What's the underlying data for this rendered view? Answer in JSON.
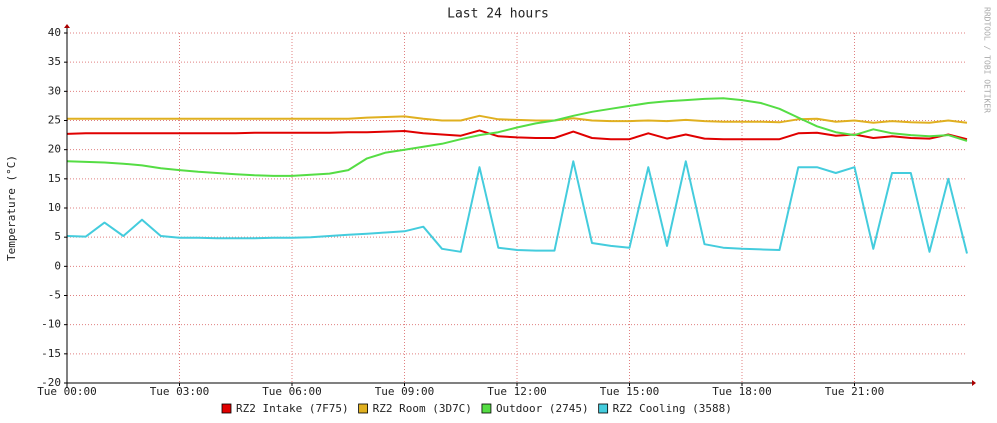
{
  "chart_data": {
    "type": "line",
    "title": "Last 24 hours",
    "ylabel": "Temperature (°C)",
    "watermark": "RRDTOOL / TOBI OETIKER",
    "x": [
      0,
      0.5,
      1,
      1.5,
      2,
      2.5,
      3,
      3.5,
      4,
      4.5,
      5,
      5.5,
      6,
      6.5,
      7,
      7.5,
      8,
      8.5,
      9,
      9.5,
      10,
      10.5,
      11,
      11.5,
      12,
      12.5,
      13,
      13.5,
      14,
      14.5,
      15,
      15.5,
      16,
      16.5,
      17,
      17.5,
      18,
      18.5,
      19,
      19.5,
      20,
      20.5,
      21,
      21.5,
      22,
      22.5,
      23,
      23.5,
      24
    ],
    "xlim": [
      0,
      24
    ],
    "xticks": [
      {
        "value": 0,
        "label": "Tue 00:00"
      },
      {
        "value": 3,
        "label": "Tue 03:00"
      },
      {
        "value": 6,
        "label": "Tue 06:00"
      },
      {
        "value": 9,
        "label": "Tue 09:00"
      },
      {
        "value": 12,
        "label": "Tue 12:00"
      },
      {
        "value": 15,
        "label": "Tue 15:00"
      },
      {
        "value": 18,
        "label": "Tue 18:00"
      },
      {
        "value": 21,
        "label": "Tue 21:00"
      }
    ],
    "ylim": [
      -20,
      40
    ],
    "yticks": [
      -20,
      -15,
      -10,
      -5,
      0,
      5,
      10,
      15,
      20,
      25,
      30,
      35,
      40
    ],
    "grid": true,
    "series": [
      {
        "name": "RZ2 Intake (7F75)",
        "color": "#e00000",
        "values": [
          22.7,
          22.8,
          22.8,
          22.8,
          22.8,
          22.8,
          22.8,
          22.8,
          22.8,
          22.8,
          22.9,
          22.9,
          22.9,
          22.9,
          22.9,
          23,
          23,
          23.1,
          23.2,
          22.8,
          22.6,
          22.4,
          23.3,
          22.3,
          22.1,
          22,
          22,
          23.1,
          22,
          21.8,
          21.8,
          22.8,
          21.9,
          22.6,
          21.9,
          21.8,
          21.8,
          21.8,
          21.8,
          22.8,
          22.9,
          22.4,
          22.6,
          22,
          22.3,
          22,
          21.9,
          22.6,
          21.8
        ]
      },
      {
        "name": "RZ2 Room (3D7C)",
        "color": "#e0b020",
        "values": [
          25.3,
          25.3,
          25.3,
          25.3,
          25.3,
          25.3,
          25.3,
          25.3,
          25.3,
          25.3,
          25.3,
          25.3,
          25.3,
          25.3,
          25.3,
          25.3,
          25.5,
          25.6,
          25.7,
          25.3,
          25,
          25,
          25.8,
          25.2,
          25.1,
          25,
          25,
          25.4,
          25,
          24.9,
          24.9,
          25,
          24.9,
          25.1,
          24.9,
          24.8,
          24.8,
          24.8,
          24.7,
          25.2,
          25.3,
          24.8,
          25,
          24.6,
          24.9,
          24.7,
          24.6,
          25,
          24.6
        ]
      },
      {
        "name": "Outdoor (2745)",
        "color": "#55dd44",
        "values": [
          18,
          17.9,
          17.8,
          17.6,
          17.3,
          16.8,
          16.5,
          16.2,
          16,
          15.8,
          15.6,
          15.5,
          15.5,
          15.7,
          15.9,
          16.5,
          18.5,
          19.5,
          20,
          20.5,
          21,
          21.8,
          22.5,
          23,
          23.8,
          24.5,
          25,
          25.8,
          26.5,
          27,
          27.5,
          28,
          28.3,
          28.5,
          28.7,
          28.8,
          28.5,
          28,
          27,
          25.5,
          24,
          23,
          22.5,
          23.5,
          22.8,
          22.5,
          22.3,
          22.5,
          21.5
        ]
      },
      {
        "name": "RZ2 Cooling (3588)",
        "color": "#44ccdd",
        "values": [
          5.2,
          5.1,
          7.5,
          5.2,
          8,
          5.2,
          4.9,
          4.9,
          4.8,
          4.8,
          4.8,
          4.9,
          4.9,
          5,
          5.2,
          5.4,
          5.6,
          5.8,
          6,
          6.8,
          3,
          2.5,
          17,
          3.2,
          2.8,
          2.7,
          2.7,
          18,
          4,
          3.5,
          3.2,
          17,
          3.5,
          18,
          3.8,
          3.2,
          3,
          2.9,
          2.8,
          17,
          17,
          16,
          17,
          3,
          16,
          16,
          2.5,
          15,
          2.2
        ]
      }
    ]
  }
}
